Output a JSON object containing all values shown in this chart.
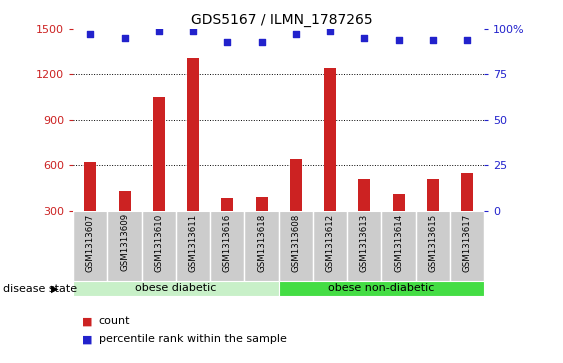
{
  "title": "GDS5167 / ILMN_1787265",
  "samples": [
    "GSM1313607",
    "GSM1313609",
    "GSM1313610",
    "GSM1313611",
    "GSM1313616",
    "GSM1313618",
    "GSM1313608",
    "GSM1313612",
    "GSM1313613",
    "GSM1313614",
    "GSM1313615",
    "GSM1313617"
  ],
  "counts": [
    620,
    430,
    1050,
    1310,
    380,
    390,
    640,
    1240,
    510,
    410,
    510,
    550
  ],
  "percentiles": [
    97,
    95,
    99,
    99,
    93,
    93,
    97,
    99,
    95,
    94,
    94,
    94
  ],
  "bar_color": "#cc2222",
  "dot_color": "#2222cc",
  "ylim_left": [
    300,
    1500
  ],
  "ylim_right": [
    0,
    100
  ],
  "yticks_left": [
    300,
    600,
    900,
    1200,
    1500
  ],
  "yticks_right": [
    0,
    25,
    50,
    75,
    100
  ],
  "ytick_right_labels": [
    "0",
    "25",
    "50",
    "75",
    "100%"
  ],
  "groups": [
    {
      "label": "obese diabetic",
      "start": 0,
      "end": 6,
      "color": "#c8f0c8"
    },
    {
      "label": "obese non-diabetic",
      "start": 6,
      "end": 12,
      "color": "#44dd44"
    }
  ],
  "disease_state_label": "disease state",
  "legend_count_label": "count",
  "legend_percentile_label": "percentile rank within the sample",
  "sample_box_color": "#cccccc",
  "plot_bg_color": "#ffffff",
  "bar_width": 0.35,
  "grid_color": "#000000"
}
